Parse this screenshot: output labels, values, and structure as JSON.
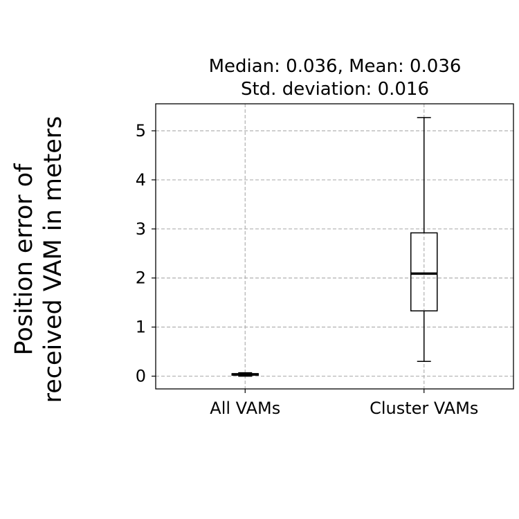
{
  "chart_data": {
    "type": "boxplot",
    "title_lines": [
      "Median: 0.036, Mean: 0.036",
      "Std. deviation: 0.016"
    ],
    "ylabel_lines": [
      "Position error of",
      "received VAM in meters"
    ],
    "xlabel": "",
    "categories": [
      "All VAMs",
      "Cluster VAMs"
    ],
    "boxes": [
      {
        "category": "All VAMs",
        "whisker_low": 0.0,
        "q1": 0.02,
        "median": 0.036,
        "q3": 0.05,
        "whisker_high": 0.07
      },
      {
        "category": "Cluster VAMs",
        "whisker_low": 0.3,
        "q1": 1.33,
        "median": 2.09,
        "q3": 2.92,
        "whisker_high": 5.27
      }
    ],
    "ylim": [
      -0.26,
      5.55
    ],
    "yticks": [
      0,
      1,
      2,
      3,
      4,
      5
    ],
    "grid": true,
    "grid_style": "dashed",
    "colors": {
      "box": "#000000",
      "grid": "#b0b0b0",
      "background": "#ffffff"
    }
  }
}
